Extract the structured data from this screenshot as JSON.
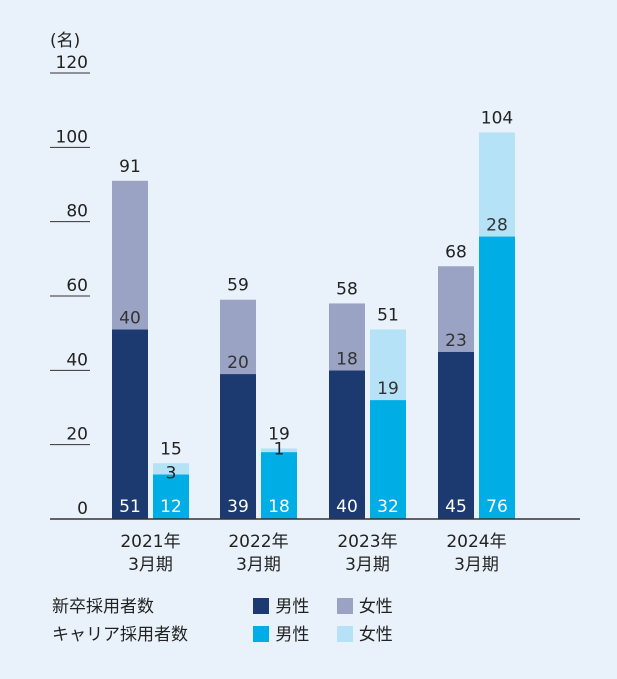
{
  "colors": {
    "new_male": "#1d3a70",
    "new_female": "#9aa3c4",
    "career_male": "#00aee6",
    "career_female": "#b5e2f6",
    "background": "#e9f2fa",
    "axis": "#333333"
  },
  "chart_data": {
    "type": "bar",
    "stacked": true,
    "unit_label": "(名)",
    "ylim": [
      0,
      120
    ],
    "yticks": [
      0,
      20,
      40,
      60,
      80,
      100,
      120
    ],
    "categories": [
      [
        "2021年",
        "3月期"
      ],
      [
        "2022年",
        "3月期"
      ],
      [
        "2023年",
        "3月期"
      ],
      [
        "2024年",
        "3月期"
      ]
    ],
    "groups": [
      {
        "name": "新卒採用者数",
        "totals": [
          91,
          59,
          58,
          68
        ],
        "series": [
          {
            "name": "男性",
            "color_key": "new_male",
            "values": [
              51,
              39,
              40,
              45
            ]
          },
          {
            "name": "女性",
            "color_key": "new_female",
            "values": [
              40,
              20,
              18,
              23
            ]
          }
        ]
      },
      {
        "name": "キャリア採用者数",
        "totals": [
          15,
          19,
          51,
          104
        ],
        "series": [
          {
            "name": "男性",
            "color_key": "career_male",
            "values": [
              12,
              18,
              32,
              76
            ]
          },
          {
            "name": "女性",
            "color_key": "career_female",
            "values": [
              3,
              1,
              19,
              28
            ]
          }
        ]
      }
    ],
    "legend_position": "bottom",
    "grid": false
  },
  "legend": {
    "rows": [
      {
        "title": "新卒採用者数",
        "items": [
          {
            "label": "男性",
            "color_key": "new_male"
          },
          {
            "label": "女性",
            "color_key": "new_female"
          }
        ]
      },
      {
        "title": "キャリア採用者数",
        "items": [
          {
            "label": "男性",
            "color_key": "career_male"
          },
          {
            "label": "女性",
            "color_key": "career_female"
          }
        ]
      }
    ]
  }
}
